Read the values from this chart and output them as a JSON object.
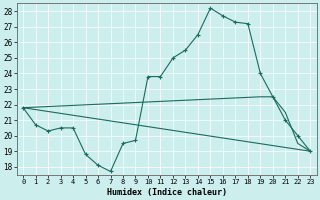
{
  "xlabel": "Humidex (Indice chaleur)",
  "bg_color": "#cceeed",
  "grid_color": "#aaaaaa",
  "line_color": "#1a6b5e",
  "xlim": [
    -0.5,
    23.5
  ],
  "ylim": [
    17.5,
    28.5
  ],
  "yticks": [
    18,
    19,
    20,
    21,
    22,
    23,
    24,
    25,
    26,
    27,
    28
  ],
  "xticks": [
    0,
    1,
    2,
    3,
    4,
    5,
    6,
    7,
    8,
    9,
    10,
    11,
    12,
    13,
    14,
    15,
    16,
    17,
    18,
    19,
    20,
    21,
    22,
    23
  ],
  "series1_x": [
    0,
    1,
    2,
    3,
    4,
    5,
    6,
    7,
    8,
    9,
    10,
    11,
    12,
    13,
    14,
    15,
    16,
    17,
    18,
    19,
    20,
    21,
    22,
    23
  ],
  "series1_y": [
    21.8,
    20.7,
    20.3,
    20.5,
    20.5,
    18.8,
    18.1,
    17.7,
    19.5,
    19.7,
    23.8,
    23.8,
    25.0,
    25.5,
    26.5,
    28.2,
    27.7,
    27.3,
    27.2,
    24.0,
    22.5,
    21.0,
    20.0,
    19.0
  ],
  "series2_x": [
    0,
    23
  ],
  "series2_y": [
    21.8,
    19.0
  ],
  "series3_x": [
    0,
    19,
    20,
    21,
    22,
    23
  ],
  "series3_y": [
    21.8,
    22.5,
    22.5,
    21.5,
    19.5,
    19.0
  ]
}
